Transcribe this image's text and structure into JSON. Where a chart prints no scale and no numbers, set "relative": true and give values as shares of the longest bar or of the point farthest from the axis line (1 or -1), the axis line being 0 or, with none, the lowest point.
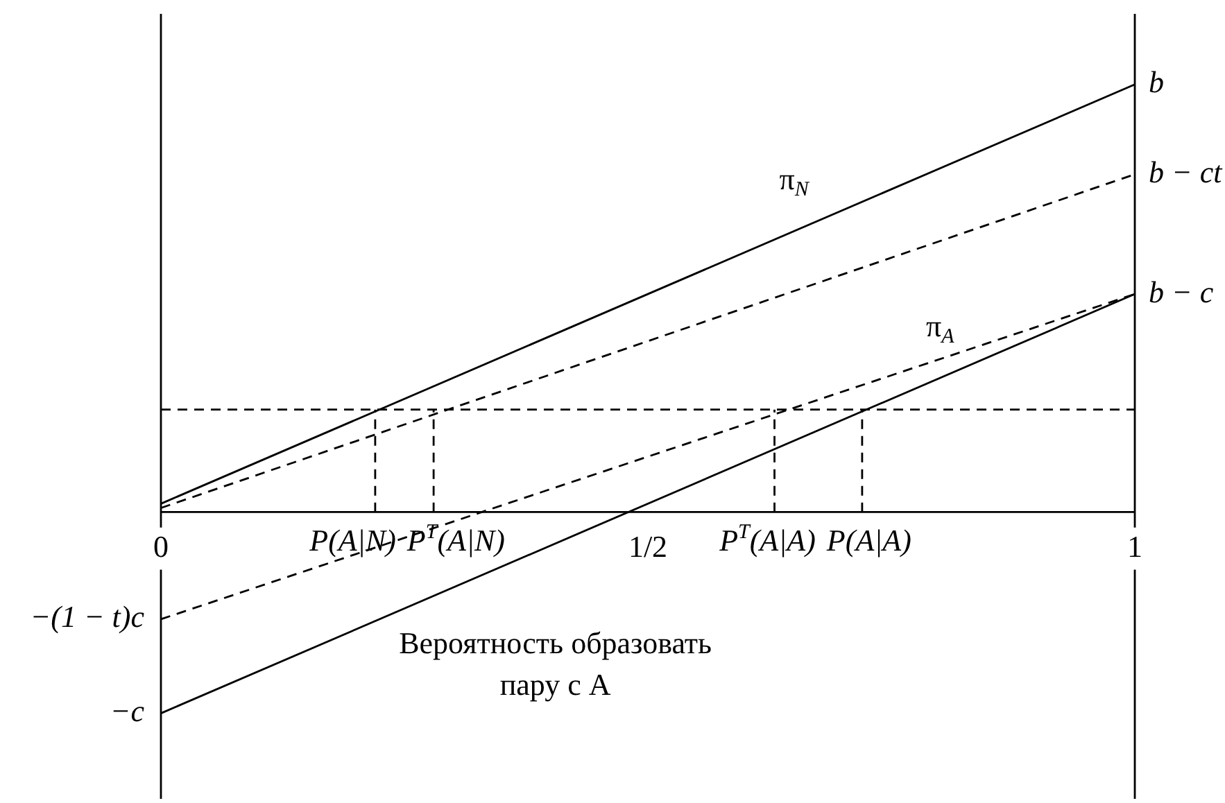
{
  "chart_data": {
    "type": "line",
    "xlabel": "Вероятность образовать пару с A",
    "relative": true,
    "xlim": [
      0,
      1
    ],
    "xticks": [
      0,
      {
        "value": 0.5,
        "label": "1/2"
      },
      1
    ],
    "series": [
      {
        "name": "π$_{N}$",
        "color": "#000000",
        "line_style": "solid",
        "x": [
          0,
          1
        ],
        "values": [
          0.02,
          1
        ]
      },
      {
        "color": "#000000",
        "line_style": "dashed",
        "x": [
          0,
          1
        ],
        "values": [
          0.01,
          0.79
        ]
      },
      {
        "name": "π$_{A}$",
        "color": "#000000",
        "line_style": "solid",
        "x": [
          0,
          1
        ],
        "values": [
          -0.47,
          0.51
        ]
      },
      {
        "color": "#000000",
        "line_style": "dashed",
        "x": [
          0,
          1
        ],
        "values": [
          -0.25,
          0.51
        ]
      },
      {
        "color": "#000000",
        "line_style": "dashed",
        "x": [
          0.22,
          0.22
        ],
        "values": [
          0,
          0.24
        ]
      },
      {
        "color": "#000000",
        "line_style": "dashed",
        "x": [
          0.28,
          0.28
        ],
        "values": [
          0,
          0.24
        ]
      },
      {
        "color": "#000000",
        "line_style": "dashed",
        "x": [
          0.63,
          0.63
        ],
        "values": [
          0,
          0.24
        ]
      },
      {
        "color": "#000000",
        "line_style": "dashed",
        "x": [
          0.72,
          0.72
        ],
        "values": [
          0,
          0.24
        ]
      }
    ],
    "ref_lines": [
      {
        "axis": "y",
        "value": 0.24,
        "color": "#000000",
        "line_style": "dashed"
      }
    ],
    "annotations": [
      {
        "text": "b",
        "x": 1,
        "y": 1
      },
      {
        "text": "b − ct",
        "x": 1,
        "y": 0.79
      },
      {
        "text": "b − c",
        "x": 1,
        "y": 0.51
      },
      {
        "text": "−(1 − t)c",
        "x": 0,
        "y": -0.25
      },
      {
        "text": "−c",
        "x": 0,
        "y": -0.47
      },
      {
        "text": "P(A|N)",
        "x": 0.22,
        "y": 0
      },
      {
        "text": "P$^{T}$(A|N)",
        "x": 0.28,
        "y": 0
      },
      {
        "text": "P$^{T}$(A|A)",
        "x": 0.63,
        "y": 0
      },
      {
        "text": "P(A|A)",
        "x": 0.72,
        "y": 0
      }
    ]
  }
}
